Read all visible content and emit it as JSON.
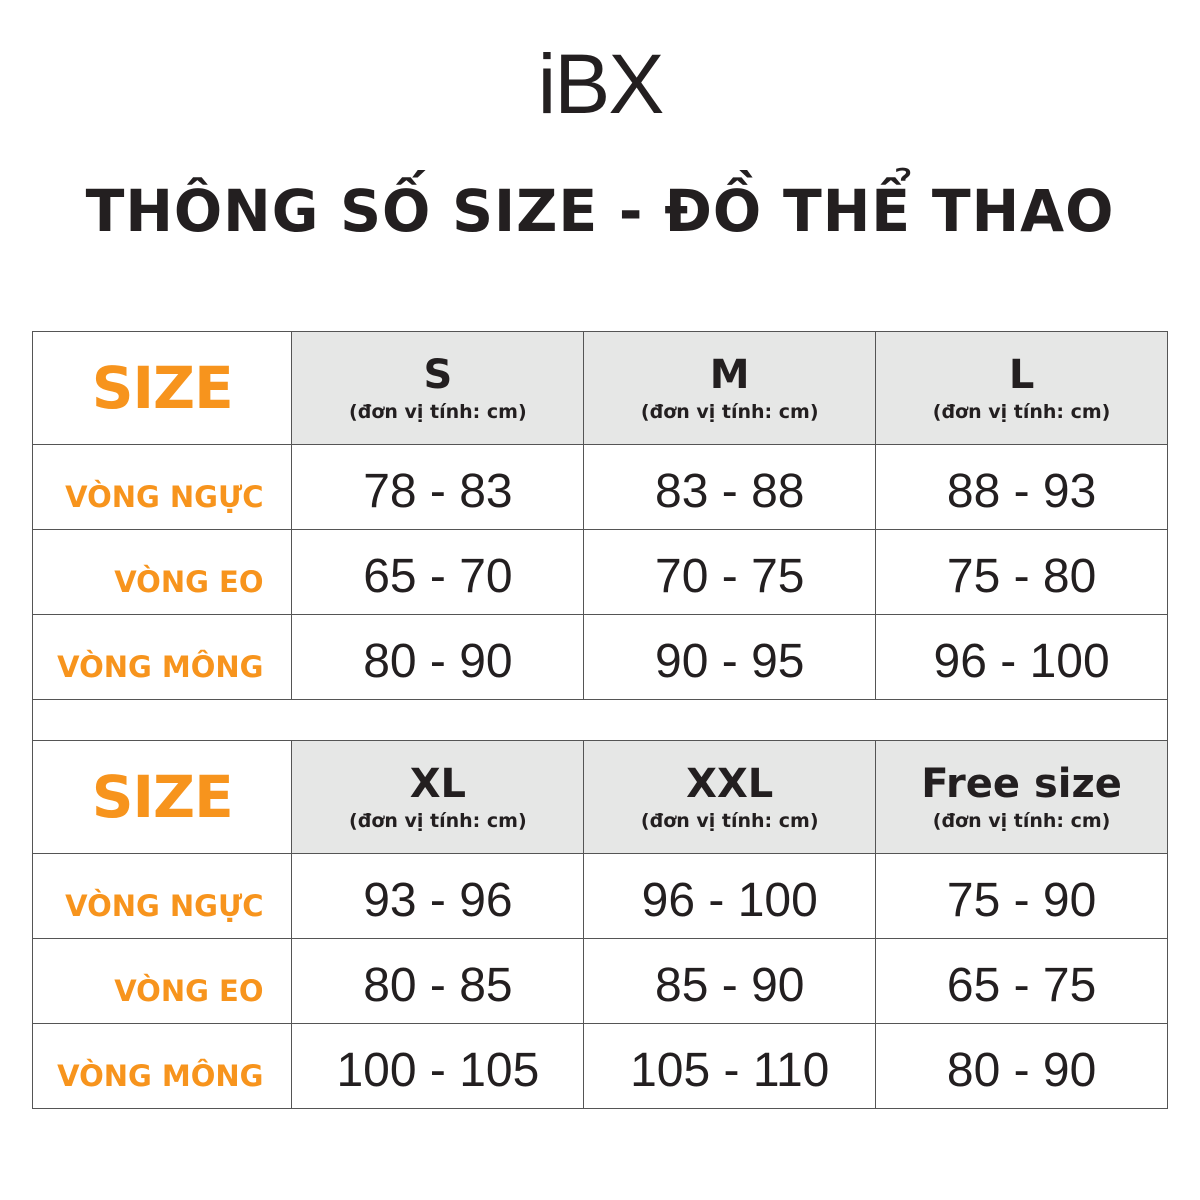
{
  "logo": "iBX",
  "title": "THÔNG SỐ SIZE - ĐỒ THỂ THAO",
  "colors": {
    "accent": "#f7941d",
    "header_bg": "#e6e7e6",
    "text": "#231f20"
  },
  "tables": [
    {
      "size_label": "SIZE",
      "sizes": [
        {
          "name": "S",
          "unit": "(đơn vị tính: cm)"
        },
        {
          "name": "M",
          "unit": "(đơn vị tính: cm)"
        },
        {
          "name": "L",
          "unit": "(đơn vị tính: cm)"
        }
      ],
      "rows": [
        {
          "label": "VÒNG NGỰC",
          "values": [
            "78 - 83",
            "83 - 88",
            "88 - 93"
          ]
        },
        {
          "label": "VÒNG EO",
          "values": [
            "65 - 70",
            "70 - 75",
            "75 - 80"
          ]
        },
        {
          "label": "VÒNG MÔNG",
          "values": [
            "80 - 90",
            "90 - 95",
            "96 - 100"
          ]
        }
      ]
    },
    {
      "size_label": "SIZE",
      "sizes": [
        {
          "name": "XL",
          "unit": "(đơn vị tính: cm)"
        },
        {
          "name": "XXL",
          "unit": "(đơn vị tính: cm)"
        },
        {
          "name": "Free size",
          "unit": "(đơn vị tính: cm)"
        }
      ],
      "rows": [
        {
          "label": "VÒNG NGỰC",
          "values": [
            "93 - 96",
            "96 - 100",
            "75 - 90"
          ]
        },
        {
          "label": "VÒNG EO",
          "values": [
            "80 - 85",
            "85 - 90",
            "65 - 75"
          ]
        },
        {
          "label": "VÒNG MÔNG",
          "values": [
            "100 - 105",
            "105 - 110",
            "80 - 90"
          ]
        }
      ]
    }
  ]
}
